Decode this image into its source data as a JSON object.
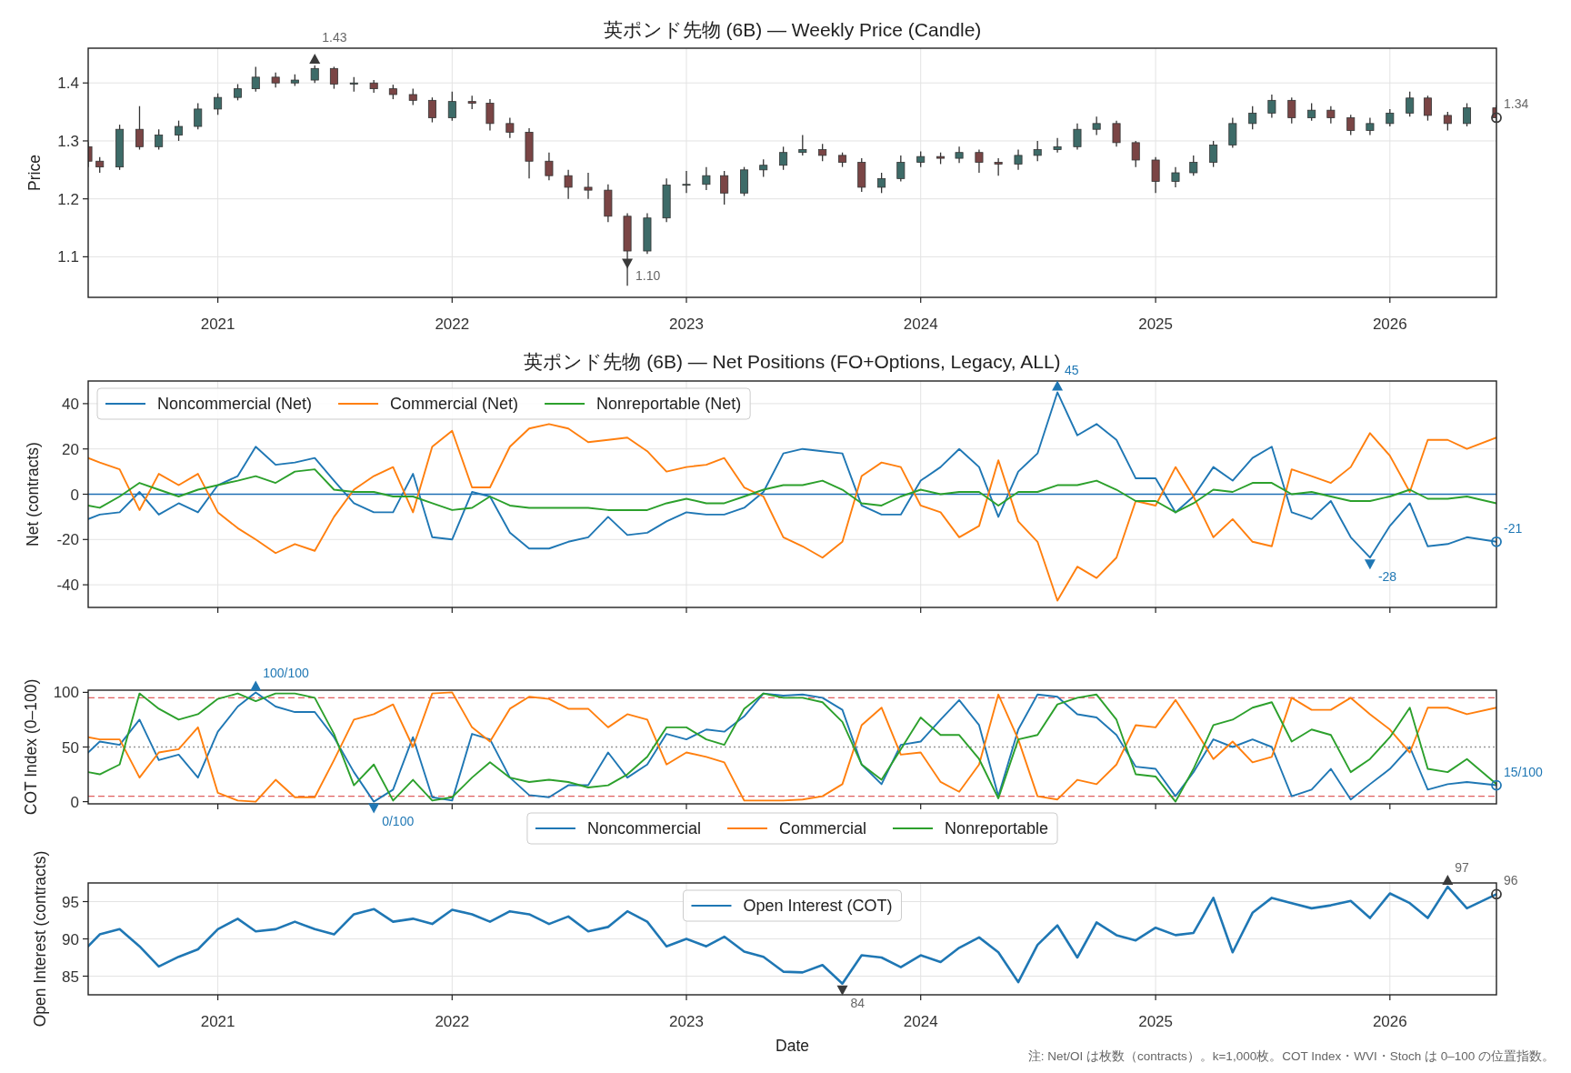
{
  "chart_data": [
    {
      "type": "candlestick",
      "title": "英ポンド先物 (6B) — Weekly Price (Candle)",
      "ylabel": "Price",
      "x": [
        "2020-06-13",
        "2020-07",
        "2020-08",
        "2020-09",
        "2020-10",
        "2020-11",
        "2020-12",
        "2021-01",
        "2021-02",
        "2021-03",
        "2021-04",
        "2021-05",
        "2021-06",
        "2021-07",
        "2021-08",
        "2021-09",
        "2021-10",
        "2021-11",
        "2021-12",
        "2022-01",
        "2022-02",
        "2022-03",
        "2022-04",
        "2022-05",
        "2022-06",
        "2022-07",
        "2022-08",
        "2022-09",
        "2022-10",
        "2022-11",
        "2022-12",
        "2023-01",
        "2023-02",
        "2023-03",
        "2023-04",
        "2023-05",
        "2023-06",
        "2023-07",
        "2023-08",
        "2023-09",
        "2023-10",
        "2023-11",
        "2023-12",
        "2024-01",
        "2024-02",
        "2024-03",
        "2024-04",
        "2024-05",
        "2024-06",
        "2024-07",
        "2024-08",
        "2024-09",
        "2024-10",
        "2024-11",
        "2024-12",
        "2025-01",
        "2025-02",
        "2025-03",
        "2025-04",
        "2025-05",
        "2025-06",
        "2025-07",
        "2025-08",
        "2025-09",
        "2025-10",
        "2025-11",
        "2025-12",
        "2026-01",
        "2026-02",
        "2026-03",
        "2026-04",
        "2026-05",
        "2026-06-16"
      ],
      "ohlc": [
        [
          1.29,
          1.298,
          1.255,
          1.265
        ],
        [
          1.265,
          1.272,
          1.245,
          1.255
        ],
        [
          1.255,
          1.328,
          1.25,
          1.32
        ],
        [
          1.32,
          1.36,
          1.285,
          1.29
        ],
        [
          1.29,
          1.32,
          1.285,
          1.31
        ],
        [
          1.31,
          1.335,
          1.3,
          1.325
        ],
        [
          1.325,
          1.365,
          1.32,
          1.355
        ],
        [
          1.355,
          1.382,
          1.345,
          1.375
        ],
        [
          1.375,
          1.398,
          1.37,
          1.39
        ],
        [
          1.39,
          1.428,
          1.385,
          1.41
        ],
        [
          1.41,
          1.418,
          1.392,
          1.4
        ],
        [
          1.4,
          1.415,
          1.395,
          1.405
        ],
        [
          1.405,
          1.43,
          1.4,
          1.425
        ],
        [
          1.425,
          1.428,
          1.39,
          1.398
        ],
        [
          1.398,
          1.41,
          1.385,
          1.4
        ],
        [
          1.4,
          1.405,
          1.383,
          1.39
        ],
        [
          1.39,
          1.397,
          1.372,
          1.38
        ],
        [
          1.38,
          1.39,
          1.362,
          1.37
        ],
        [
          1.37,
          1.375,
          1.332,
          1.34
        ],
        [
          1.34,
          1.385,
          1.335,
          1.368
        ],
        [
          1.368,
          1.378,
          1.355,
          1.365
        ],
        [
          1.365,
          1.372,
          1.318,
          1.33
        ],
        [
          1.33,
          1.34,
          1.305,
          1.315
        ],
        [
          1.315,
          1.322,
          1.235,
          1.265
        ],
        [
          1.265,
          1.28,
          1.232,
          1.24
        ],
        [
          1.24,
          1.25,
          1.2,
          1.22
        ],
        [
          1.22,
          1.245,
          1.2,
          1.215
        ],
        [
          1.215,
          1.225,
          1.16,
          1.17
        ],
        [
          1.17,
          1.175,
          1.05,
          1.11
        ],
        [
          1.11,
          1.175,
          1.105,
          1.167
        ],
        [
          1.167,
          1.235,
          1.16,
          1.224
        ],
        [
          1.224,
          1.248,
          1.21,
          1.225
        ],
        [
          1.225,
          1.255,
          1.215,
          1.24
        ],
        [
          1.24,
          1.248,
          1.19,
          1.21
        ],
        [
          1.21,
          1.255,
          1.205,
          1.25
        ],
        [
          1.25,
          1.268,
          1.238,
          1.258
        ],
        [
          1.258,
          1.29,
          1.25,
          1.28
        ],
        [
          1.28,
          1.31,
          1.275,
          1.285
        ],
        [
          1.285,
          1.295,
          1.265,
          1.275
        ],
        [
          1.275,
          1.28,
          1.255,
          1.263
        ],
        [
          1.263,
          1.27,
          1.212,
          1.22
        ],
        [
          1.22,
          1.245,
          1.21,
          1.235
        ],
        [
          1.235,
          1.275,
          1.23,
          1.263
        ],
        [
          1.263,
          1.282,
          1.255,
          1.273
        ],
        [
          1.273,
          1.28,
          1.26,
          1.27
        ],
        [
          1.27,
          1.29,
          1.262,
          1.28
        ],
        [
          1.28,
          1.285,
          1.245,
          1.263
        ],
        [
          1.263,
          1.27,
          1.24,
          1.26
        ],
        [
          1.26,
          1.285,
          1.25,
          1.275
        ],
        [
          1.275,
          1.3,
          1.265,
          1.285
        ],
        [
          1.285,
          1.305,
          1.28,
          1.29
        ],
        [
          1.29,
          1.33,
          1.285,
          1.32
        ],
        [
          1.32,
          1.342,
          1.31,
          1.33
        ],
        [
          1.33,
          1.335,
          1.29,
          1.297
        ],
        [
          1.297,
          1.3,
          1.255,
          1.267
        ],
        [
          1.267,
          1.272,
          1.21,
          1.23
        ],
        [
          1.23,
          1.255,
          1.22,
          1.245
        ],
        [
          1.245,
          1.275,
          1.24,
          1.263
        ],
        [
          1.263,
          1.3,
          1.255,
          1.293
        ],
        [
          1.293,
          1.34,
          1.288,
          1.33
        ],
        [
          1.33,
          1.36,
          1.32,
          1.348
        ],
        [
          1.348,
          1.38,
          1.34,
          1.37
        ],
        [
          1.37,
          1.375,
          1.33,
          1.34
        ],
        [
          1.34,
          1.365,
          1.335,
          1.353
        ],
        [
          1.353,
          1.36,
          1.33,
          1.34
        ],
        [
          1.34,
          1.345,
          1.31,
          1.318
        ],
        [
          1.318,
          1.34,
          1.31,
          1.33
        ],
        [
          1.33,
          1.355,
          1.325,
          1.348
        ],
        [
          1.348,
          1.385,
          1.342,
          1.374
        ],
        [
          1.374,
          1.378,
          1.335,
          1.344
        ],
        [
          1.344,
          1.35,
          1.318,
          1.33
        ],
        [
          1.33,
          1.365,
          1.325,
          1.357
        ],
        [
          1.357,
          1.362,
          1.332,
          1.34
        ]
      ],
      "color": "#333333",
      "colors": [
        "#7a4545",
        "#7a4545",
        "#3d6b68",
        "#7a4545",
        "#3d6b68",
        "#3d6b68",
        "#3d6b68",
        "#3d6b68",
        "#3d6b68",
        "#3d6b68",
        "#7a4545",
        "#3d6b68",
        "#3d6b68",
        "#7a4545",
        "#3d6b68",
        "#7a4545",
        "#7a4545",
        "#7a4545",
        "#7a4545",
        "#3d6b68",
        "#7a4545",
        "#7a4545",
        "#7a4545",
        "#7a4545",
        "#7a4545",
        "#7a4545",
        "#7a4545",
        "#7a4545",
        "#7a4545",
        "#3d6b68",
        "#3d6b68",
        "#3d6b68",
        "#3d6b68",
        "#7a4545",
        "#3d6b68",
        "#3d6b68",
        "#3d6b68",
        "#3d6b68",
        "#7a4545",
        "#7a4545",
        "#7a4545",
        "#3d6b68",
        "#3d6b68",
        "#3d6b68",
        "#7a4545",
        "#3d6b68",
        "#7a4545",
        "#7a4545",
        "#3d6b68",
        "#3d6b68",
        "#3d6b68",
        "#3d6b68",
        "#3d6b68",
        "#7a4545",
        "#7a4545",
        "#7a4545",
        "#3d6b68",
        "#3d6b68",
        "#3d6b68",
        "#3d6b68",
        "#3d6b68",
        "#3d6b68",
        "#7a4545",
        "#3d6b68",
        "#7a4545",
        "#7a4545",
        "#3d6b68",
        "#3d6b68",
        "#3d6b68",
        "#7a4545",
        "#7a4545",
        "#3d6b68",
        "#7a4545"
      ],
      "xlim": [
        "2020-06-13",
        "2026-06-16"
      ],
      "ylim": [
        1.03,
        1.46
      ],
      "xticks": [
        "2021",
        "2022",
        "2023",
        "2024",
        "2025",
        "2026"
      ],
      "yticks": [
        1.1,
        1.2,
        1.3,
        1.4
      ],
      "grid": true,
      "annotations": [
        {
          "text": "1.43",
          "x": "2021-06",
          "y": 1.43
        },
        {
          "text": "1.10",
          "x": "2022-10",
          "y": 1.1
        },
        {
          "text": "1.34",
          "x": "2026-06-16",
          "y": 1.34
        }
      ]
    },
    {
      "type": "line",
      "title": "英ポンド先物 (6B) — Net Positions (FO+Options, Legacy, ALL)",
      "ylabel": "Net (contracts)",
      "x": [
        "2020-06-13",
        "2020-07",
        "2020-08",
        "2020-09",
        "2020-10",
        "2020-11",
        "2020-12",
        "2021-01",
        "2021-02",
        "2021-03",
        "2021-04",
        "2021-05",
        "2021-06",
        "2021-07",
        "2021-08",
        "2021-09",
        "2021-10",
        "2021-11",
        "2021-12",
        "2022-01",
        "2022-02",
        "2022-03",
        "2022-04",
        "2022-05",
        "2022-06",
        "2022-07",
        "2022-08",
        "2022-09",
        "2022-10",
        "2022-11",
        "2022-12",
        "2023-01",
        "2023-02",
        "2023-03",
        "2023-04",
        "2023-05",
        "2023-06",
        "2023-07",
        "2023-08",
        "2023-09",
        "2023-10",
        "2023-11",
        "2023-12",
        "2024-01",
        "2024-02",
        "2024-03",
        "2024-04",
        "2024-05",
        "2024-06",
        "2024-07",
        "2024-08",
        "2024-09",
        "2024-10",
        "2024-11",
        "2024-12",
        "2025-01",
        "2025-02",
        "2025-03",
        "2025-04",
        "2025-05",
        "2025-06",
        "2025-07",
        "2025-08",
        "2025-09",
        "2025-10",
        "2025-11",
        "2025-12",
        "2026-01",
        "2026-02",
        "2026-03",
        "2026-04",
        "2026-05",
        "2026-06-16"
      ],
      "series": [
        {
          "name": "Noncommercial (Net)",
          "color": "#1f77b4",
          "values": [
            -11,
            -9,
            -8,
            1,
            -9,
            -4,
            -8,
            4,
            8,
            21,
            13,
            14,
            16,
            6,
            -4,
            -8,
            -8,
            9,
            -19,
            -20,
            1,
            -1,
            -17,
            -24,
            -24,
            -21,
            -19,
            -10,
            -18,
            -17,
            -12,
            -8,
            -9,
            -9,
            -6,
            1,
            18,
            20,
            19,
            18,
            -5,
            -9,
            -9,
            6,
            12,
            20,
            12,
            -10,
            10,
            18,
            45,
            26,
            31,
            24,
            7,
            7,
            -8,
            -1,
            12,
            6,
            16,
            21,
            -8,
            -11,
            -3,
            -19,
            -28,
            -14,
            -4,
            -23,
            -22,
            -19,
            -21
          ]
        },
        {
          "name": "Commercial (Net)",
          "color": "#ff7f0e",
          "values": [
            16,
            14,
            11,
            -7,
            9,
            4,
            9,
            -8,
            -15,
            -20,
            -26,
            -22,
            -25,
            -10,
            2,
            8,
            12,
            -8,
            21,
            28,
            3,
            3,
            21,
            29,
            31,
            29,
            23,
            24,
            25,
            19,
            10,
            12,
            13,
            16,
            3,
            -1,
            -19,
            -23,
            -28,
            -21,
            8,
            14,
            12,
            -5,
            -8,
            -19,
            -14,
            15,
            -12,
            -21,
            -47,
            -32,
            -37,
            -28,
            -3,
            -5,
            12,
            -1,
            -19,
            -11,
            -21,
            -23,
            11,
            8,
            5,
            12,
            27,
            17,
            1,
            24,
            24,
            20,
            25
          ]
        },
        {
          "name": "Nonreportable (Net)",
          "color": "#2ca02c",
          "values": [
            -5,
            -6,
            -1,
            5,
            2,
            -1,
            2,
            4,
            6,
            8,
            5,
            10,
            11,
            2,
            1,
            1,
            -1,
            -1,
            -4,
            -7,
            -6,
            -1,
            -5,
            -6,
            -6,
            -6,
            -6,
            -7,
            -7,
            -7,
            -4,
            -2,
            -4,
            -4,
            -1,
            2,
            4,
            4,
            6,
            2,
            -4,
            -5,
            -1,
            2,
            0,
            1,
            1,
            -5,
            1,
            1,
            4,
            4,
            6,
            2,
            -3,
            -3,
            -8,
            -4,
            2,
            1,
            5,
            5,
            0,
            1,
            -1,
            -3,
            -3,
            -1,
            2,
            -2,
            -2,
            -1,
            -4
          ]
        }
      ],
      "xlim": [
        "2020-06-13",
        "2026-06-16"
      ],
      "ylim": [
        -50,
        50
      ],
      "xticks": [
        "2021",
        "2022",
        "2023",
        "2024",
        "2025",
        "2026"
      ],
      "yticks": [
        -40,
        -20,
        0,
        20,
        40
      ],
      "grid": true,
      "legend": "top left",
      "tick_labels": "y",
      "ref_lines": [
        {
          "axis": "y",
          "value": 0,
          "color": "#1f6fb4"
        }
      ],
      "annotations": [
        {
          "text": "45",
          "x": "2024-08",
          "y": 45
        },
        {
          "text": "-28",
          "x": "2025-12",
          "y": -28
        },
        {
          "text": "-21",
          "x": "2026-06-16",
          "y": -21
        }
      ]
    },
    {
      "type": "line",
      "ylabel": "COT Index (0–100)",
      "x": [
        "2020-06-13",
        "2020-07",
        "2020-08",
        "2020-09",
        "2020-10",
        "2020-11",
        "2020-12",
        "2021-01",
        "2021-02",
        "2021-03",
        "2021-04",
        "2021-05",
        "2021-06",
        "2021-07",
        "2021-08",
        "2021-09",
        "2021-10",
        "2021-11",
        "2021-12",
        "2022-01",
        "2022-02",
        "2022-03",
        "2022-04",
        "2022-05",
        "2022-06",
        "2022-07",
        "2022-08",
        "2022-09",
        "2022-10",
        "2022-11",
        "2022-12",
        "2023-01",
        "2023-02",
        "2023-03",
        "2023-04",
        "2023-05",
        "2023-06",
        "2023-07",
        "2023-08",
        "2023-09",
        "2023-10",
        "2023-11",
        "2023-12",
        "2024-01",
        "2024-02",
        "2024-03",
        "2024-04",
        "2024-05",
        "2024-06",
        "2024-07",
        "2024-08",
        "2024-09",
        "2024-10",
        "2024-11",
        "2024-12",
        "2025-01",
        "2025-02",
        "2025-03",
        "2025-04",
        "2025-05",
        "2025-06",
        "2025-07",
        "2025-08",
        "2025-09",
        "2025-10",
        "2025-11",
        "2025-12",
        "2026-01",
        "2026-02",
        "2026-03",
        "2026-04",
        "2026-05",
        "2026-06-16"
      ],
      "series": [
        {
          "name": "Noncommercial",
          "color": "#1f77b4",
          "values": [
            45,
            55,
            52,
            75,
            38,
            43,
            22,
            64,
            87,
            100,
            87,
            82,
            82,
            59,
            27,
            0,
            11,
            59,
            4,
            1,
            62,
            57,
            22,
            6,
            4,
            15,
            15,
            45,
            22,
            34,
            62,
            57,
            66,
            64,
            78,
            99,
            97,
            98,
            95,
            84,
            34,
            16,
            52,
            55,
            75,
            93,
            70,
            5,
            66,
            98,
            96,
            80,
            77,
            61,
            32,
            30,
            5,
            27,
            57,
            50,
            57,
            50,
            5,
            11,
            30,
            2,
            16,
            30,
            50,
            11,
            16,
            18,
            15
          ]
        },
        {
          "name": "Commercial",
          "color": "#ff7f0e",
          "values": [
            59,
            57,
            57,
            22,
            45,
            48,
            68,
            8,
            1,
            0,
            20,
            4,
            4,
            38,
            75,
            80,
            89,
            50,
            99,
            100,
            68,
            55,
            85,
            96,
            94,
            85,
            85,
            68,
            80,
            75,
            34,
            45,
            41,
            36,
            1,
            1,
            1,
            2,
            5,
            16,
            70,
            86,
            43,
            45,
            18,
            9,
            34,
            98,
            57,
            5,
            2,
            20,
            16,
            34,
            70,
            68,
            93,
            68,
            39,
            55,
            36,
            41,
            95,
            84,
            84,
            95,
            80,
            66,
            45,
            86,
            86,
            80,
            86
          ]
        },
        {
          "name": "Nonreportable",
          "color": "#2ca02c",
          "values": [
            27,
            25,
            34,
            99,
            85,
            75,
            80,
            94,
            99,
            92,
            99,
            99,
            95,
            62,
            15,
            34,
            1,
            20,
            1,
            4,
            22,
            36,
            22,
            18,
            20,
            18,
            13,
            15,
            25,
            41,
            68,
            68,
            57,
            52,
            85,
            99,
            95,
            95,
            91,
            73,
            34,
            20,
            48,
            77,
            61,
            61,
            39,
            3,
            57,
            61,
            89,
            95,
            98,
            75,
            25,
            23,
            0,
            30,
            70,
            75,
            86,
            91,
            55,
            66,
            61,
            27,
            39,
            59,
            86,
            30,
            27,
            39,
            16
          ]
        }
      ],
      "xlim": [
        "2020-06-13",
        "2026-06-16"
      ],
      "ylim": [
        -2,
        102
      ],
      "xticks": [
        "2021",
        "2022",
        "2023",
        "2024",
        "2025",
        "2026"
      ],
      "yticks": [
        0,
        50,
        100
      ],
      "legend": "bottom",
      "tick_labels": "y",
      "ref_lines": [
        {
          "axis": "y",
          "value": 95,
          "color": "#e06060",
          "line_style": "dashed"
        },
        {
          "axis": "y",
          "value": 5,
          "color": "#e06060",
          "line_style": "dashed"
        },
        {
          "axis": "y",
          "value": 50,
          "color": "#999999",
          "line_style": "dotted"
        }
      ],
      "annotations": [
        {
          "text": "100/100",
          "x": "2021-03",
          "y": 100
        },
        {
          "text": "0/100",
          "x": "2021-09",
          "y": 0
        },
        {
          "text": "15/100",
          "x": "2026-06-16",
          "y": 15
        }
      ]
    },
    {
      "type": "line",
      "xlabel": "Date",
      "ylabel": "Open Interest (contracts)",
      "x": [
        "2020-06-13",
        "2020-07",
        "2020-08",
        "2020-09",
        "2020-10",
        "2020-11",
        "2020-12",
        "2021-01",
        "2021-02",
        "2021-03",
        "2021-04",
        "2021-05",
        "2021-06",
        "2021-07",
        "2021-08",
        "2021-09",
        "2021-10",
        "2021-11",
        "2021-12",
        "2022-01",
        "2022-02",
        "2022-03",
        "2022-04",
        "2022-05",
        "2022-06",
        "2022-07",
        "2022-08",
        "2022-09",
        "2022-10",
        "2022-11",
        "2022-12",
        "2023-01",
        "2023-02",
        "2023-03",
        "2023-04",
        "2023-05",
        "2023-06",
        "2023-07",
        "2023-08",
        "2023-09",
        "2023-10",
        "2023-11",
        "2023-12",
        "2024-01",
        "2024-02",
        "2024-03",
        "2024-04",
        "2024-05",
        "2024-06",
        "2024-07",
        "2024-08",
        "2024-09",
        "2024-10",
        "2024-11",
        "2024-12",
        "2025-01",
        "2025-02",
        "2025-03",
        "2025-04",
        "2025-05",
        "2025-06",
        "2025-07",
        "2025-08",
        "2025-09",
        "2025-10",
        "2025-11",
        "2025-12",
        "2026-01",
        "2026-02",
        "2026-03",
        "2026-04",
        "2026-05",
        "2026-06-16"
      ],
      "series": [
        {
          "name": "Open Interest (COT)",
          "color": "#1f77b4",
          "values": [
            89,
            90.6,
            91.3,
            89,
            86.3,
            87.6,
            88.6,
            91.3,
            92.7,
            91,
            91.3,
            92.3,
            91.3,
            90.6,
            93.3,
            94,
            92.3,
            92.7,
            92,
            93.9,
            93.3,
            92.3,
            93.7,
            93.3,
            92,
            93,
            91,
            91.6,
            93.7,
            92.3,
            89,
            90,
            89,
            90.3,
            88.3,
            87.6,
            85.6,
            85.5,
            86.5,
            84,
            87.8,
            87.5,
            86.2,
            87.8,
            86.9,
            88.8,
            90.2,
            88.2,
            84.2,
            89.2,
            91.8,
            87.5,
            92.2,
            90.5,
            89.8,
            91.5,
            90.5,
            90.8,
            95.5,
            88.2,
            93.5,
            95.5,
            94.8,
            94.1,
            94.5,
            95.1,
            92.8,
            96.1,
            94.8,
            92.8,
            97,
            94.1,
            96
          ]
        }
      ],
      "xlim": [
        "2020-06-13",
        "2026-06-16"
      ],
      "ylim": [
        82.5,
        97.5
      ],
      "xticks": [
        "2021",
        "2022",
        "2023",
        "2024",
        "2025",
        "2026"
      ],
      "yticks": [
        85,
        90,
        95
      ],
      "grid": true,
      "legend": "top",
      "annotations": [
        {
          "text": "97",
          "x": "2026-04",
          "y": 97
        },
        {
          "text": "84",
          "x": "2023-09",
          "y": 84
        },
        {
          "text": "96",
          "x": "2026-06-16",
          "y": 96
        },
        "注: Net/OI は枚数（contracts）。k=1,000枚。COT Index・WVI・Stoch は 0–100 の位置指数。"
      ]
    }
  ]
}
